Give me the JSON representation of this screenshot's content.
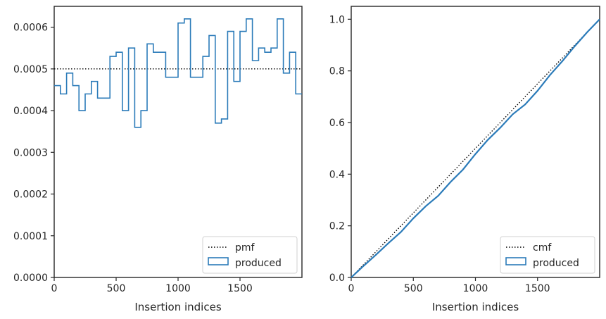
{
  "chart_data": [
    {
      "type": "step",
      "xlabel": "Insertion indices",
      "ylabel": "",
      "xlim": [
        0,
        2000
      ],
      "ylim": [
        0,
        0.00065
      ],
      "xticks": [
        0,
        500,
        1000,
        1500
      ],
      "yticks": [
        0,
        0.0001,
        0.0002,
        0.0003,
        0.0004,
        0.0005,
        0.0006
      ],
      "ytick_labels": [
        "0.0000",
        "0.0001",
        "0.0002",
        "0.0003",
        "0.0004",
        "0.0005",
        "0.0006"
      ],
      "legend_position": "lower right",
      "reference": {
        "name": "pmf",
        "value": 0.0005,
        "style": "dotted",
        "color": "#000000"
      },
      "series": [
        {
          "name": "produced",
          "color": "#2b7bb9",
          "bin_width": 50,
          "bin_starts": [
            0,
            50,
            100,
            150,
            200,
            250,
            300,
            350,
            400,
            450,
            500,
            550,
            600,
            650,
            700,
            750,
            800,
            850,
            900,
            950,
            1000,
            1050,
            1100,
            1150,
            1200,
            1250,
            1300,
            1350,
            1400,
            1450,
            1500,
            1550,
            1600,
            1650,
            1700,
            1750,
            1800,
            1850,
            1900,
            1950
          ],
          "values": [
            0.00046,
            0.00044,
            0.00049,
            0.00046,
            0.0004,
            0.00044,
            0.00047,
            0.00043,
            0.00043,
            0.00053,
            0.00054,
            0.0004,
            0.00055,
            0.00036,
            0.0004,
            0.00056,
            0.00054,
            0.00054,
            0.00048,
            0.00048,
            0.00061,
            0.00062,
            0.00048,
            0.00048,
            0.00053,
            0.00058,
            0.00037,
            0.00038,
            0.00059,
            0.00047,
            0.00059,
            0.00062,
            0.00052,
            0.00055,
            0.00054,
            0.00055,
            0.00062,
            0.00049,
            0.00054,
            0.00044
          ]
        }
      ]
    },
    {
      "type": "line",
      "xlabel": "Insertion indices",
      "ylabel": "",
      "xlim": [
        0,
        2000
      ],
      "ylim": [
        0,
        1.05
      ],
      "xticks": [
        0,
        500,
        1000,
        1500
      ],
      "yticks": [
        0,
        0.2,
        0.4,
        0.6,
        0.8,
        1.0
      ],
      "ytick_labels": [
        "0.0",
        "0.2",
        "0.4",
        "0.6",
        "0.8",
        "1.0"
      ],
      "legend_position": "lower right",
      "reference": {
        "name": "cmf",
        "x": [
          0,
          2000
        ],
        "y": [
          0,
          1
        ],
        "style": "dotted",
        "color": "#000000"
      },
      "series": [
        {
          "name": "produced",
          "color": "#2b7bb9",
          "x": [
            0,
            100,
            200,
            300,
            400,
            500,
            600,
            700,
            800,
            900,
            1000,
            1100,
            1200,
            1300,
            1400,
            1500,
            1600,
            1700,
            1800,
            1900,
            2000
          ],
          "y": [
            0,
            0.045,
            0.088,
            0.133,
            0.176,
            0.229,
            0.276,
            0.316,
            0.37,
            0.418,
            0.478,
            0.533,
            0.58,
            0.632,
            0.67,
            0.723,
            0.784,
            0.838,
            0.896,
            0.95,
            1.0
          ]
        }
      ]
    }
  ]
}
